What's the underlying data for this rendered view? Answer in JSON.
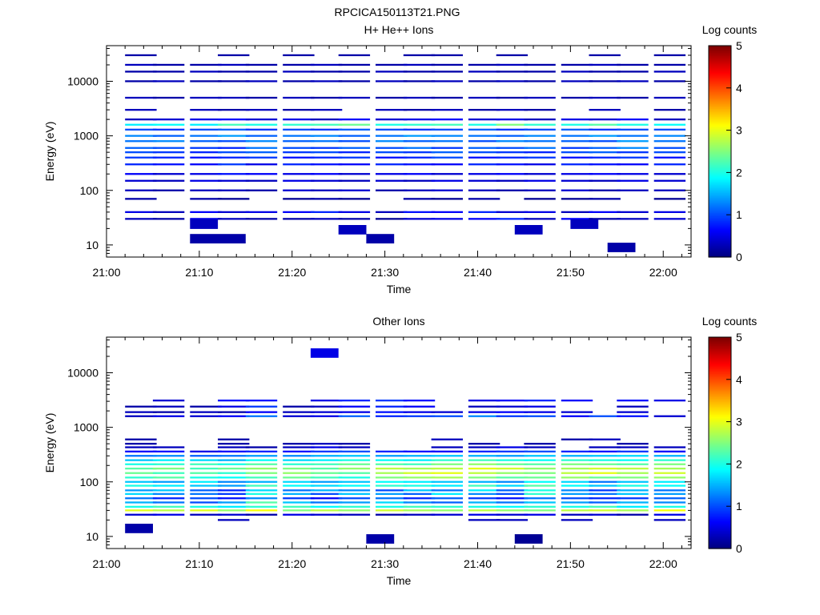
{
  "figure_title": "RPCICA150113T21.PNG",
  "chart_data": [
    {
      "type": "heatmap",
      "title": "H+ He++ Ions",
      "xlabel": "Time",
      "ylabel": "Energy (eV)",
      "y_scale": "log",
      "xlim": [
        "21:00",
        "22:03"
      ],
      "ylim": [
        6,
        45000
      ],
      "x_ticks": [
        "21:00",
        "21:10",
        "21:20",
        "21:30",
        "21:40",
        "21:50",
        "22:00"
      ],
      "y_ticks": [
        "10",
        "100",
        "1000",
        "10000"
      ],
      "colorbar": {
        "label": "Log counts",
        "range": [
          0,
          5
        ],
        "ticks": [
          "0",
          "1",
          "2",
          "3",
          "4",
          "5"
        ],
        "colormap": "jet"
      },
      "grid": false,
      "time_bins": [
        "21:02",
        "21:05",
        "21:09",
        "21:12",
        "21:15",
        "21:19",
        "21:22",
        "21:25",
        "21:29",
        "21:32",
        "21:35",
        "21:39",
        "21:42",
        "21:45",
        "21:49",
        "21:52",
        "21:55",
        "21:59"
      ],
      "energy_channels_eV": [
        30,
        40,
        70,
        100,
        150,
        200,
        300,
        400,
        500,
        600,
        800,
        1000,
        1300,
        1600,
        2000,
        3000,
        5000,
        10000,
        15000,
        20000,
        30000
      ],
      "log_counts_by_channel": [
        [
          0.3,
          0.2,
          0.5,
          0.3,
          0.2,
          0.2,
          0.3,
          0.2,
          0.1,
          0.4,
          0.5,
          0.6,
          0.8,
          0.3,
          0.6,
          0.2,
          0.3,
          0.4
        ],
        [
          0.5,
          0.3,
          0.6,
          0.4,
          0.5,
          0.6,
          0.8,
          0.5,
          0.3,
          0.7,
          0.6,
          0.8,
          0.4,
          0.5,
          0.3,
          0.6,
          0.4,
          0.5
        ],
        [
          0.2,
          0.0,
          0.2,
          0.1,
          0.0,
          0.1,
          0.2,
          0.1,
          0.0,
          0.2,
          0.1,
          0.2,
          0.0,
          0.1,
          0.1,
          0.2,
          0.0,
          0.1
        ],
        [
          0.3,
          0.2,
          0.3,
          0.3,
          0.2,
          0.4,
          0.3,
          0.4,
          0.2,
          0.3,
          0.4,
          0.3,
          0.2,
          0.3,
          0.4,
          0.2,
          0.3,
          0.3
        ],
        [
          0.4,
          0.3,
          0.5,
          0.4,
          0.3,
          0.5,
          0.4,
          0.3,
          0.4,
          0.3,
          0.5,
          0.4,
          0.3,
          0.5,
          0.4,
          0.3,
          0.5,
          0.4
        ],
        [
          0.6,
          0.4,
          0.5,
          0.7,
          0.6,
          0.5,
          0.6,
          0.4,
          0.5,
          0.6,
          0.4,
          0.5,
          0.6,
          0.4,
          0.5,
          0.6,
          0.5,
          0.4
        ],
        [
          0.8,
          0.7,
          0.6,
          0.9,
          0.5,
          0.8,
          0.7,
          0.6,
          0.8,
          0.7,
          0.6,
          0.8,
          0.7,
          0.5,
          0.8,
          0.7,
          0.6,
          0.8
        ],
        [
          0.9,
          0.8,
          0.7,
          0.8,
          0.9,
          0.7,
          0.8,
          0.9,
          0.7,
          0.8,
          1.0,
          0.7,
          0.8,
          0.9,
          0.7,
          0.8,
          0.9,
          0.7
        ],
        [
          1.0,
          0.9,
          0.8,
          1.0,
          1.1,
          0.9,
          1.0,
          0.8,
          1.0,
          0.9,
          1.1,
          1.0,
          0.9,
          0.8,
          1.0,
          1.1,
          0.9,
          1.0
        ],
        [
          1.1,
          1.0,
          0.9,
          0.8,
          1.2,
          1.0,
          0.9,
          1.1,
          1.0,
          1.2,
          0.9,
          1.1,
          1.0,
          1.2,
          0.9,
          1.1,
          1.3,
          1.0
        ],
        [
          1.2,
          1.3,
          1.1,
          1.0,
          1.3,
          1.1,
          1.2,
          1.0,
          1.3,
          1.1,
          1.2,
          1.0,
          1.3,
          1.2,
          1.1,
          1.0,
          1.4,
          1.2
        ],
        [
          1.3,
          1.1,
          1.2,
          1.4,
          1.1,
          1.2,
          1.3,
          1.1,
          1.2,
          1.4,
          1.3,
          1.2,
          1.1,
          1.3,
          1.2,
          1.4,
          1.2,
          1.3
        ],
        [
          1.0,
          0.9,
          1.0,
          1.1,
          0.9,
          1.0,
          0.9,
          1.1,
          1.0,
          0.9,
          1.0,
          1.1,
          0.9,
          1.0,
          1.1,
          0.9,
          1.0,
          1.0
        ],
        [
          1.8,
          1.9,
          1.8,
          2.2,
          2.0,
          2.1,
          2.2,
          2.4,
          2.0,
          2.1,
          2.2,
          2.0,
          2.5,
          2.1,
          2.0,
          2.3,
          2.0,
          1.9
        ],
        [
          0.3,
          0.4,
          0.5,
          0.6,
          0.4,
          0.5,
          0.3,
          0.6,
          0.4,
          0.5,
          0.6,
          0.4,
          0.5,
          0.3,
          0.5,
          0.4,
          0.6,
          0.3
        ],
        [
          0.3,
          0.0,
          0.3,
          0.2,
          0.3,
          0.2,
          0.3,
          0.0,
          0.3,
          0.2,
          0.3,
          0.2,
          0.3,
          0.2,
          0.0,
          0.3,
          0.0,
          0.2
        ],
        [
          0.3,
          0.2,
          0.3,
          0.3,
          0.2,
          0.3,
          0.2,
          0.3,
          0.2,
          0.3,
          0.2,
          0.3,
          0.2,
          0.3,
          0.2,
          0.3,
          0.2,
          0.3
        ],
        [
          0.2,
          0.3,
          0.2,
          0.2,
          0.3,
          0.2,
          0.3,
          0.2,
          0.3,
          0.2,
          0.3,
          0.2,
          0.3,
          0.2,
          0.3,
          0.2,
          0.3,
          0.2
        ],
        [
          0.2,
          0.2,
          0.3,
          0.2,
          0.2,
          0.3,
          0.2,
          0.2,
          0.3,
          0.2,
          0.2,
          0.3,
          0.2,
          0.2,
          0.3,
          0.2,
          0.2,
          0.3
        ],
        [
          0.3,
          0.2,
          0.2,
          0.3,
          0.2,
          0.2,
          0.3,
          0.2,
          0.2,
          0.3,
          0.2,
          0.2,
          0.3,
          0.2,
          0.2,
          0.3,
          0.2,
          0.2
        ],
        [
          0.2,
          0.0,
          0.0,
          0.2,
          0.0,
          0.2,
          0.0,
          0.2,
          0.0,
          0.2,
          0.2,
          0.0,
          0.2,
          0.0,
          0.0,
          0.2,
          0.0,
          0.2
        ]
      ],
      "isolated_low_energy_cells": [
        {
          "start": "21:09",
          "end": "21:15",
          "energy_eV": 13,
          "value": 0.2
        },
        {
          "start": "21:28",
          "end": "21:31",
          "energy_eV": 13,
          "value": 0.2
        },
        {
          "start": "21:54",
          "end": "21:57",
          "energy_eV": 9,
          "value": 0.2
        },
        {
          "start": "21:09",
          "end": "21:12",
          "energy_eV": 24,
          "value": 0.3
        },
        {
          "start": "21:25",
          "end": "21:28",
          "energy_eV": 19,
          "value": 0.3
        },
        {
          "start": "21:44",
          "end": "21:47",
          "energy_eV": 19,
          "value": 0.3
        },
        {
          "start": "21:50",
          "end": "21:53",
          "energy_eV": 24,
          "value": 0.3
        }
      ]
    },
    {
      "type": "heatmap",
      "title": "Other Ions",
      "xlabel": "Time",
      "ylabel": "Energy (eV)",
      "y_scale": "log",
      "xlim": [
        "21:00",
        "22:03"
      ],
      "ylim": [
        6,
        45000
      ],
      "x_ticks": [
        "21:00",
        "21:10",
        "21:20",
        "21:30",
        "21:40",
        "21:50",
        "22:00"
      ],
      "y_ticks": [
        "10",
        "100",
        "1000",
        "10000"
      ],
      "colorbar": {
        "label": "Log counts",
        "range": [
          0,
          5
        ],
        "ticks": [
          "0",
          "1",
          "2",
          "3",
          "4",
          "5"
        ],
        "colormap": "jet"
      },
      "grid": false,
      "time_bins": [
        "21:02",
        "21:05",
        "21:09",
        "21:12",
        "21:15",
        "21:19",
        "21:22",
        "21:25",
        "21:29",
        "21:32",
        "21:35",
        "21:39",
        "21:42",
        "21:45",
        "21:49",
        "21:52",
        "21:55",
        "21:59"
      ],
      "energy_channels_eV": [
        20,
        25,
        30,
        35,
        42,
        50,
        60,
        70,
        85,
        100,
        120,
        145,
        175,
        210,
        250,
        300,
        360,
        430,
        500,
        600,
        1600,
        1900,
        2400,
        3100
      ],
      "log_counts_by_channel": [
        [
          0.0,
          0.0,
          0.0,
          0.3,
          0.0,
          0.0,
          0.0,
          0.0,
          0.0,
          0.0,
          0.0,
          0.3,
          0.3,
          0.0,
          0.3,
          0.0,
          0.0,
          0.3
        ],
        [
          0.4,
          0.5,
          0.3,
          0.4,
          0.2,
          0.5,
          0.4,
          0.3,
          0.2,
          0.3,
          0.4,
          0.5,
          0.4,
          0.5,
          0.3,
          0.4,
          0.2,
          0.5
        ],
        [
          3.0,
          2.8,
          3.0,
          2.6,
          3.1,
          2.5,
          2.8,
          2.6,
          2.9,
          2.7,
          2.6,
          2.8,
          2.6,
          2.5,
          2.8,
          2.9,
          2.7,
          3.1
        ],
        [
          2.0,
          2.2,
          2.0,
          1.8,
          2.1,
          2.2,
          1.9,
          2.1,
          2.0,
          2.2,
          2.1,
          2.0,
          1.9,
          2.1,
          2.0,
          2.2,
          1.8,
          2.0
        ],
        [
          1.5,
          1.2,
          1.0,
          1.4,
          2.3,
          1.6,
          1.2,
          1.4,
          1.7,
          1.3,
          1.1,
          1.5,
          1.2,
          1.6,
          1.4,
          1.1,
          1.5,
          1.3
        ],
        [
          1.2,
          0.8,
          1.0,
          0.7,
          1.3,
          0.9,
          0.6,
          1.0,
          1.2,
          0.8,
          1.1,
          0.9,
          0.7,
          1.2,
          1.0,
          0.8,
          0.9,
          1.1
        ],
        [
          1.7,
          1.3,
          1.2,
          0.9,
          2.0,
          1.5,
          1.0,
          1.6,
          1.4,
          1.1,
          1.8,
          1.3,
          1.0,
          2.1,
          1.4,
          1.2,
          1.6,
          1.4
        ],
        [
          1.4,
          1.6,
          1.1,
          0.8,
          1.7,
          1.2,
          1.5,
          1.3,
          1.0,
          1.6,
          1.2,
          1.8,
          1.1,
          2.0,
          1.3,
          0.9,
          1.5,
          1.2
        ],
        [
          2.0,
          1.8,
          1.6,
          1.4,
          2.2,
          1.9,
          1.7,
          1.9,
          2.1,
          2.0,
          1.8,
          2.2,
          1.7,
          2.3,
          1.9,
          1.6,
          2.0,
          1.9
        ],
        [
          1.6,
          1.4,
          1.8,
          1.3,
          1.5,
          1.7,
          1.4,
          1.6,
          1.9,
          1.8,
          1.6,
          1.5,
          1.3,
          1.9,
          1.7,
          1.2,
          1.6,
          1.8
        ],
        [
          2.1,
          2.3,
          2.0,
          1.9,
          2.2,
          2.4,
          2.2,
          2.0,
          2.5,
          2.6,
          2.7,
          2.5,
          2.3,
          2.4,
          2.6,
          2.4,
          2.5,
          2.6
        ],
        [
          2.4,
          2.2,
          2.3,
          2.1,
          2.5,
          2.6,
          2.4,
          2.3,
          2.7,
          2.9,
          3.0,
          2.8,
          2.6,
          2.5,
          2.8,
          3.0,
          2.7,
          2.9
        ],
        [
          2.3,
          2.5,
          2.2,
          2.4,
          2.6,
          2.5,
          2.3,
          2.6,
          2.8,
          2.7,
          2.8,
          3.0,
          2.9,
          2.6,
          2.7,
          2.9,
          2.8,
          2.7
        ],
        [
          2.0,
          2.1,
          2.2,
          2.0,
          2.3,
          2.1,
          2.2,
          2.4,
          2.3,
          2.2,
          2.5,
          2.6,
          2.4,
          2.3,
          2.5,
          2.4,
          2.3,
          2.5
        ],
        [
          1.6,
          1.8,
          1.7,
          1.5,
          1.9,
          1.7,
          1.8,
          2.0,
          1.9,
          1.8,
          2.1,
          2.2,
          2.0,
          1.9,
          2.1,
          2.0,
          1.9,
          2.1
        ],
        [
          1.2,
          1.3,
          1.1,
          1.2,
          1.4,
          1.3,
          1.5,
          1.6,
          1.4,
          1.5,
          1.6,
          1.5,
          1.4,
          1.6,
          1.5,
          1.6,
          1.7,
          1.5
        ],
        [
          0.6,
          0.7,
          0.5,
          0.6,
          0.8,
          0.7,
          0.9,
          1.0,
          0.8,
          0.7,
          0.6,
          0.8,
          0.9,
          1.0,
          0.8,
          0.7,
          0.9,
          0.6
        ],
        [
          0.3,
          0.3,
          0.0,
          0.3,
          0.2,
          0.3,
          0.5,
          0.3,
          0.0,
          0.0,
          0.3,
          0.3,
          0.5,
          0.3,
          0.0,
          0.3,
          0.3,
          0.3
        ],
        [
          0.2,
          0.0,
          0.0,
          0.2,
          0.0,
          0.2,
          0.3,
          0.2,
          0.0,
          0.0,
          0.0,
          0.2,
          0.0,
          0.2,
          0.0,
          0.0,
          0.2,
          0.0
        ],
        [
          0.2,
          0.0,
          0.0,
          0.2,
          0.0,
          0.0,
          0.0,
          0.0,
          0.0,
          0.0,
          0.3,
          0.0,
          0.0,
          0.0,
          0.2,
          0.3,
          0.0,
          0.0
        ],
        [
          0.3,
          0.5,
          0.4,
          0.6,
          1.2,
          0.4,
          0.5,
          1.1,
          0.8,
          0.9,
          1.0,
          1.3,
          0.9,
          1.0,
          0.6,
          1.0,
          0.7,
          0.4
        ],
        [
          0.3,
          0.2,
          0.3,
          0.2,
          0.6,
          0.3,
          0.4,
          0.5,
          0.7,
          0.5,
          0.4,
          0.5,
          0.6,
          0.5,
          0.4,
          0.0,
          0.4,
          0.0
        ],
        [
          0.2,
          0.3,
          0.2,
          0.5,
          0.9,
          0.2,
          0.3,
          0.6,
          0.8,
          0.6,
          0.0,
          0.3,
          0.4,
          0.5,
          0.0,
          0.0,
          0.3,
          0.0
        ],
        [
          0.0,
          0.4,
          0.0,
          0.7,
          0.7,
          0.0,
          0.5,
          0.8,
          0.9,
          0.7,
          0.0,
          0.5,
          0.6,
          0.8,
          0.6,
          0.0,
          0.7,
          0.5
        ]
      ],
      "isolated_cells": [
        {
          "start": "21:02",
          "end": "21:05",
          "energy_eV": 14,
          "value": 0.2
        },
        {
          "start": "21:28",
          "end": "21:31",
          "energy_eV": 9,
          "value": 0.2
        },
        {
          "start": "21:44",
          "end": "21:47",
          "energy_eV": 9,
          "value": 0.1
        },
        {
          "start": "21:22",
          "end": "21:25",
          "energy_eV": 23000,
          "value": 0.5
        }
      ]
    }
  ]
}
